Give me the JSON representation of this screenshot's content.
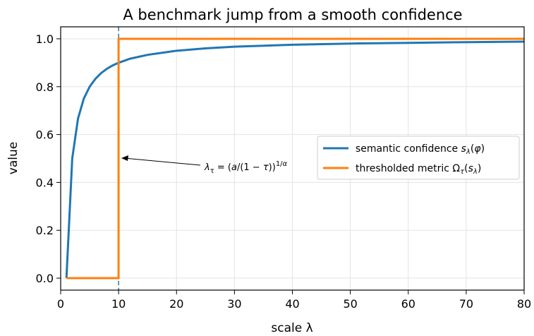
{
  "chart_data": {
    "type": "line",
    "title": "A benchmark jump from a smooth confidence",
    "xlabel": "scale λ",
    "ylabel": "value",
    "xlim": [
      0,
      80
    ],
    "ylim": [
      -0.05,
      1.05
    ],
    "xticks": [
      0,
      10,
      20,
      30,
      40,
      50,
      60,
      70,
      80
    ],
    "yticks": [
      0.0,
      0.2,
      0.4,
      0.6,
      0.8,
      1.0
    ],
    "xtick_labels": [
      "0",
      "10",
      "20",
      "30",
      "40",
      "50",
      "60",
      "70",
      "80"
    ],
    "ytick_labels": [
      "0.0",
      "0.2",
      "0.4",
      "0.6",
      "0.8",
      "1.0"
    ],
    "grid": true,
    "legend_position": "center-right",
    "series": [
      {
        "name": "semantic confidence s_λ(φ)",
        "color": "#1f77b4",
        "x": [
          1,
          2,
          3,
          4,
          5,
          6,
          7,
          8,
          9,
          10,
          12,
          15,
          20,
          25,
          30,
          40,
          50,
          60,
          70,
          80
        ],
        "y": [
          0.0,
          0.5,
          0.667,
          0.75,
          0.8,
          0.833,
          0.857,
          0.875,
          0.889,
          0.9,
          0.917,
          0.933,
          0.95,
          0.96,
          0.967,
          0.975,
          0.98,
          0.983,
          0.986,
          0.988
        ]
      },
      {
        "name": "thresholded metric Ω_τ(s_λ)",
        "color": "#ff7f0e",
        "x": [
          1,
          10,
          10,
          80
        ],
        "y": [
          0.0,
          0.0,
          1.0,
          1.0
        ]
      }
    ],
    "threshold_line": {
      "x": 10,
      "color": "#1f77b4",
      "style": "dashed"
    },
    "annotation": {
      "text": "λτ = (a/(1 − τ))1/α",
      "arrow_target": [
        10,
        0.5
      ]
    }
  }
}
